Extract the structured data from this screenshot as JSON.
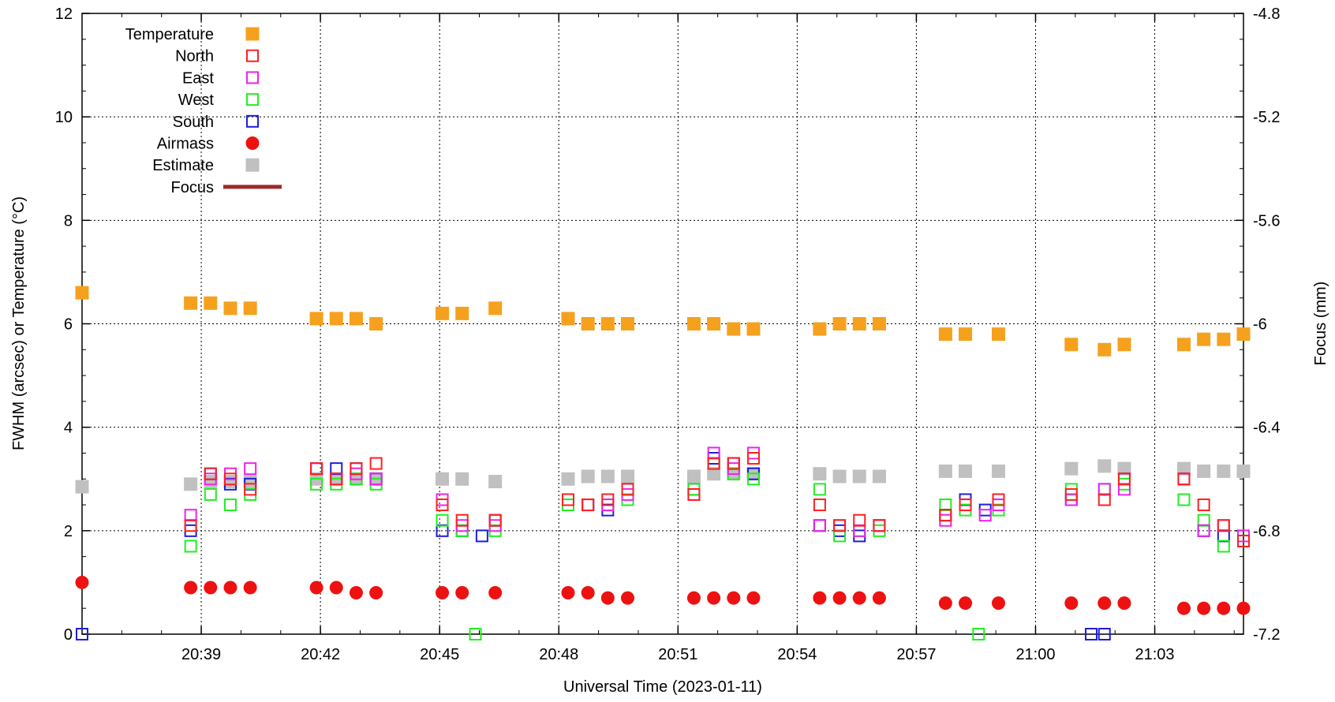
{
  "chart_data": {
    "type": "scatter",
    "title": "",
    "xlabel": "Universal Time (2023-01-11)",
    "ylabel": "FWHM (arcsec) or Temperature (°C)",
    "y2label": "Focus (mm)",
    "x_range": [
      "20:36:00",
      "21:05:14"
    ],
    "ylim": [
      0,
      12
    ],
    "y2lim": [
      -7.2,
      -4.8
    ],
    "grid": true,
    "legend_position": "top-left",
    "x_ticks": [
      "20:39",
      "20:42",
      "20:45",
      "20:48",
      "20:51",
      "20:54",
      "20:57",
      "21:00",
      "21:03"
    ],
    "y_ticks": [
      "0",
      "2",
      "4",
      "6",
      "8",
      "10",
      "12"
    ],
    "y2_ticks": [
      "-7.2",
      "-6.8",
      "-6.4",
      "-6",
      "-5.6",
      "-5.2",
      "-4.8"
    ],
    "series": [
      {
        "name": "Temperature",
        "marker": "filled-square",
        "color": "#f5a11d",
        "points": [
          [
            "20:36:00",
            6.6
          ],
          [
            "20:38:44",
            6.4
          ],
          [
            "20:39:14",
            6.4
          ],
          [
            "20:39:44",
            6.3
          ],
          [
            "20:40:14",
            6.3
          ],
          [
            "20:41:54",
            6.1
          ],
          [
            "20:42:24",
            6.1
          ],
          [
            "20:42:54",
            6.1
          ],
          [
            "20:43:24",
            6.0
          ],
          [
            "20:45:04",
            6.2
          ],
          [
            "20:45:34",
            6.2
          ],
          [
            "20:46:24",
            6.3
          ],
          [
            "20:48:14",
            6.1
          ],
          [
            "20:48:44",
            6.0
          ],
          [
            "20:49:14",
            6.0
          ],
          [
            "20:49:44",
            6.0
          ],
          [
            "20:51:24",
            6.0
          ],
          [
            "20:51:54",
            6.0
          ],
          [
            "20:52:24",
            5.9
          ],
          [
            "20:52:54",
            5.9
          ],
          [
            "20:54:34",
            5.9
          ],
          [
            "20:55:04",
            6.0
          ],
          [
            "20:55:34",
            6.0
          ],
          [
            "20:56:04",
            6.0
          ],
          [
            "20:57:44",
            5.8
          ],
          [
            "20:58:14",
            5.8
          ],
          [
            "20:59:04",
            5.8
          ],
          [
            "21:00:54",
            5.6
          ],
          [
            "21:01:44",
            5.5
          ],
          [
            "21:02:14",
            5.6
          ],
          [
            "21:03:44",
            5.6
          ],
          [
            "21:04:14",
            5.7
          ],
          [
            "21:04:44",
            5.7
          ],
          [
            "21:05:14",
            5.8
          ]
        ]
      },
      {
        "name": "North",
        "marker": "open-square",
        "color": "#ff2020",
        "points": [
          [
            "20:38:44",
            2.1
          ],
          [
            "20:39:14",
            3.1
          ],
          [
            "20:39:44",
            3.0
          ],
          [
            "20:40:14",
            2.8
          ],
          [
            "20:41:54",
            3.2
          ],
          [
            "20:42:24",
            3.0
          ],
          [
            "20:42:54",
            3.2
          ],
          [
            "20:43:24",
            3.3
          ],
          [
            "20:45:04",
            2.5
          ],
          [
            "20:45:34",
            2.2
          ],
          [
            "20:46:24",
            2.2
          ],
          [
            "20:48:14",
            2.6
          ],
          [
            "20:48:44",
            2.5
          ],
          [
            "20:49:14",
            2.6
          ],
          [
            "20:49:44",
            2.8
          ],
          [
            "20:51:24",
            2.7
          ],
          [
            "20:51:54",
            3.3
          ],
          [
            "20:52:24",
            3.3
          ],
          [
            "20:52:54",
            3.4
          ],
          [
            "20:54:34",
            2.5
          ],
          [
            "20:55:04",
            2.1
          ],
          [
            "20:55:34",
            2.2
          ],
          [
            "20:56:04",
            2.1
          ],
          [
            "20:57:44",
            2.3
          ],
          [
            "20:58:14",
            2.5
          ],
          [
            "20:59:04",
            2.6
          ],
          [
            "21:00:54",
            2.7
          ],
          [
            "21:01:44",
            2.6
          ],
          [
            "21:02:14",
            3.0
          ],
          [
            "21:03:44",
            3.0
          ],
          [
            "21:04:14",
            2.5
          ],
          [
            "21:04:44",
            2.1
          ],
          [
            "21:05:14",
            1.8
          ]
        ]
      },
      {
        "name": "East",
        "marker": "open-square",
        "color": "#ee22ee",
        "points": [
          [
            "20:38:44",
            2.3
          ],
          [
            "20:39:14",
            3.0
          ],
          [
            "20:39:44",
            3.1
          ],
          [
            "20:40:14",
            3.2
          ],
          [
            "20:41:54",
            3.2
          ],
          [
            "20:42:24",
            3.0
          ],
          [
            "20:42:54",
            3.1
          ],
          [
            "20:43:24",
            3.0
          ],
          [
            "20:45:04",
            2.6
          ],
          [
            "20:45:34",
            2.1
          ],
          [
            "20:46:24",
            2.1
          ],
          [
            "20:48:14",
            2.6
          ],
          [
            "20:48:44",
            2.5
          ],
          [
            "20:49:14",
            2.5
          ],
          [
            "20:49:44",
            2.7
          ],
          [
            "20:51:24",
            2.7
          ],
          [
            "20:51:54",
            3.5
          ],
          [
            "20:52:24",
            3.2
          ],
          [
            "20:52:54",
            3.5
          ],
          [
            "20:54:34",
            2.1
          ],
          [
            "20:55:04",
            2.1
          ],
          [
            "20:55:34",
            2.0
          ],
          [
            "20:56:04",
            2.1
          ],
          [
            "20:57:44",
            2.2
          ],
          [
            "20:58:14",
            2.5
          ],
          [
            "20:58:44",
            2.3
          ],
          [
            "20:59:04",
            2.5
          ],
          [
            "21:00:54",
            2.6
          ],
          [
            "21:01:44",
            2.8
          ],
          [
            "21:02:14",
            2.8
          ],
          [
            "21:03:44",
            3.0
          ],
          [
            "21:04:14",
            2.0
          ],
          [
            "21:04:44",
            2.1
          ],
          [
            "21:05:14",
            1.9
          ]
        ]
      },
      {
        "name": "West",
        "marker": "open-square",
        "color": "#22ee22",
        "points": [
          [
            "20:38:44",
            1.7
          ],
          [
            "20:39:14",
            2.7
          ],
          [
            "20:39:44",
            2.5
          ],
          [
            "20:40:14",
            2.7
          ],
          [
            "20:41:54",
            2.9
          ],
          [
            "20:42:24",
            2.9
          ],
          [
            "20:42:54",
            3.0
          ],
          [
            "20:43:24",
            2.9
          ],
          [
            "20:45:04",
            2.2
          ],
          [
            "20:45:34",
            2.0
          ],
          [
            "20:45:54",
            0.0
          ],
          [
            "20:46:24",
            2.0
          ],
          [
            "20:48:14",
            2.5
          ],
          [
            "20:48:44",
            2.5
          ],
          [
            "20:49:14",
            2.5
          ],
          [
            "20:49:44",
            2.6
          ],
          [
            "20:51:24",
            2.8
          ],
          [
            "20:51:54",
            3.3
          ],
          [
            "20:52:24",
            3.1
          ],
          [
            "20:52:54",
            3.0
          ],
          [
            "20:54:34",
            2.8
          ],
          [
            "20:55:04",
            1.9
          ],
          [
            "20:55:34",
            2.0
          ],
          [
            "20:56:04",
            2.0
          ],
          [
            "20:57:44",
            2.5
          ],
          [
            "20:58:14",
            2.4
          ],
          [
            "20:58:34",
            0.0
          ],
          [
            "20:59:04",
            2.4
          ],
          [
            "21:00:54",
            2.8
          ],
          [
            "21:01:44",
            2.8
          ],
          [
            "21:02:14",
            2.9
          ],
          [
            "21:03:44",
            2.6
          ],
          [
            "21:04:14",
            2.2
          ],
          [
            "21:04:44",
            1.7
          ],
          [
            "21:05:14",
            1.8
          ]
        ]
      },
      {
        "name": "South",
        "marker": "open-square",
        "color": "#1e1edd",
        "points": [
          [
            "20:36:00",
            0.0
          ],
          [
            "20:38:44",
            2.0
          ],
          [
            "20:39:14",
            3.1
          ],
          [
            "20:39:44",
            2.9
          ],
          [
            "20:40:14",
            2.9
          ],
          [
            "20:41:54",
            3.2
          ],
          [
            "20:42:24",
            3.2
          ],
          [
            "20:42:54",
            3.2
          ],
          [
            "20:43:24",
            3.0
          ],
          [
            "20:45:04",
            2.0
          ],
          [
            "20:45:34",
            2.0
          ],
          [
            "20:46:04",
            1.9
          ],
          [
            "20:46:24",
            2.2
          ],
          [
            "20:48:14",
            2.6
          ],
          [
            "20:48:44",
            2.5
          ],
          [
            "20:49:14",
            2.4
          ],
          [
            "20:49:44",
            2.8
          ],
          [
            "20:51:24",
            2.8
          ],
          [
            "20:51:54",
            3.4
          ],
          [
            "20:52:24",
            3.3
          ],
          [
            "20:52:54",
            3.1
          ],
          [
            "20:54:34",
            2.1
          ],
          [
            "20:55:04",
            2.0
          ],
          [
            "20:55:34",
            1.9
          ],
          [
            "20:56:04",
            2.1
          ],
          [
            "20:57:44",
            2.3
          ],
          [
            "20:58:14",
            2.6
          ],
          [
            "20:58:44",
            2.4
          ],
          [
            "20:59:04",
            2.5
          ],
          [
            "21:00:54",
            2.6
          ],
          [
            "21:01:24",
            0.0
          ],
          [
            "21:01:44",
            0.0
          ],
          [
            "21:02:14",
            3.0
          ],
          [
            "21:03:44",
            3.0
          ],
          [
            "21:04:14",
            2.0
          ],
          [
            "21:04:44",
            1.9
          ],
          [
            "21:05:14",
            1.8
          ]
        ]
      },
      {
        "name": "Airmass",
        "marker": "filled-circle",
        "color": "#ee1111",
        "points": [
          [
            "20:36:00",
            1.0
          ],
          [
            "20:38:44",
            0.9
          ],
          [
            "20:39:14",
            0.9
          ],
          [
            "20:39:44",
            0.9
          ],
          [
            "20:40:14",
            0.9
          ],
          [
            "20:41:54",
            0.9
          ],
          [
            "20:42:24",
            0.9
          ],
          [
            "20:42:54",
            0.8
          ],
          [
            "20:43:24",
            0.8
          ],
          [
            "20:45:04",
            0.8
          ],
          [
            "20:45:34",
            0.8
          ],
          [
            "20:46:24",
            0.8
          ],
          [
            "20:48:14",
            0.8
          ],
          [
            "20:48:44",
            0.8
          ],
          [
            "20:49:14",
            0.7
          ],
          [
            "20:49:44",
            0.7
          ],
          [
            "20:51:24",
            0.7
          ],
          [
            "20:51:54",
            0.7
          ],
          [
            "20:52:24",
            0.7
          ],
          [
            "20:52:54",
            0.7
          ],
          [
            "20:54:34",
            0.7
          ],
          [
            "20:55:04",
            0.7
          ],
          [
            "20:55:34",
            0.7
          ],
          [
            "20:56:04",
            0.7
          ],
          [
            "20:57:44",
            0.6
          ],
          [
            "20:58:14",
            0.6
          ],
          [
            "20:59:04",
            0.6
          ],
          [
            "21:00:54",
            0.6
          ],
          [
            "21:01:44",
            0.6
          ],
          [
            "21:02:14",
            0.6
          ],
          [
            "21:03:44",
            0.5
          ],
          [
            "21:04:14",
            0.5
          ],
          [
            "21:04:44",
            0.5
          ],
          [
            "21:05:14",
            0.5
          ]
        ]
      },
      {
        "name": "Estimate",
        "marker": "filled-square",
        "color": "#c0c0c0",
        "points": [
          [
            "20:36:00",
            2.85
          ],
          [
            "20:38:44",
            2.9
          ],
          [
            "20:39:14",
            2.95
          ],
          [
            "20:39:44",
            2.95
          ],
          [
            "20:40:14",
            2.95
          ],
          [
            "20:41:54",
            3.0
          ],
          [
            "20:42:24",
            3.0
          ],
          [
            "20:42:54",
            3.0
          ],
          [
            "20:43:24",
            3.0
          ],
          [
            "20:45:04",
            3.0
          ],
          [
            "20:45:34",
            3.0
          ],
          [
            "20:46:24",
            2.95
          ],
          [
            "20:48:14",
            3.0
          ],
          [
            "20:48:44",
            3.05
          ],
          [
            "20:49:14",
            3.05
          ],
          [
            "20:49:44",
            3.05
          ],
          [
            "20:51:24",
            3.05
          ],
          [
            "20:51:54",
            3.1
          ],
          [
            "20:52:24",
            3.1
          ],
          [
            "20:52:54",
            3.1
          ],
          [
            "20:54:34",
            3.1
          ],
          [
            "20:55:04",
            3.05
          ],
          [
            "20:55:34",
            3.05
          ],
          [
            "20:56:04",
            3.05
          ],
          [
            "20:57:44",
            3.15
          ],
          [
            "20:58:14",
            3.15
          ],
          [
            "20:59:04",
            3.15
          ],
          [
            "21:00:54",
            3.2
          ],
          [
            "21:01:44",
            3.25
          ],
          [
            "21:02:14",
            3.2
          ],
          [
            "21:03:44",
            3.2
          ],
          [
            "21:04:14",
            3.15
          ],
          [
            "21:04:44",
            3.15
          ],
          [
            "21:05:14",
            3.15
          ]
        ]
      },
      {
        "name": "Focus",
        "marker": "line",
        "color": "#9e2a2a",
        "axis": "y2",
        "points": []
      }
    ]
  }
}
